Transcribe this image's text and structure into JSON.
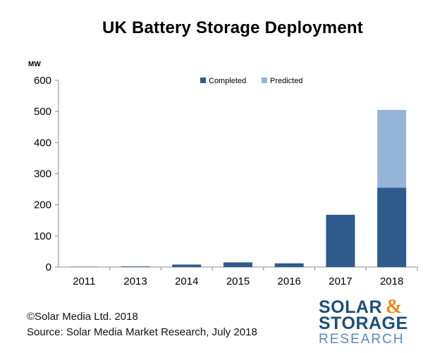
{
  "chart_data": {
    "type": "bar",
    "stacked": true,
    "title": "UK Battery Storage Deployment",
    "ylabel": "MW",
    "ylim": [
      0,
      600
    ],
    "yticks": [
      0,
      100,
      200,
      300,
      400,
      500,
      600
    ],
    "grid": false,
    "legend_position": "top-center",
    "categories": [
      "2011",
      "2013",
      "2014",
      "2015",
      "2016",
      "2017",
      "2018"
    ],
    "series": [
      {
        "name": "Completed",
        "color": "#2e5a8c",
        "values": [
          1,
          2,
          8,
          15,
          12,
          168,
          255
        ]
      },
      {
        "name": "Predicted",
        "color": "#95b4d8",
        "values": [
          0,
          0,
          0,
          0,
          0,
          0,
          250
        ]
      }
    ]
  },
  "footer": {
    "copyright": "©Solar Media Ltd. 2018",
    "source": "Source: Solar Media Market Research, July 2018"
  },
  "logo": {
    "line1": "SOLAR",
    "ampersand": "&",
    "line2": "STORAGE",
    "line3": "RESEARCH"
  }
}
